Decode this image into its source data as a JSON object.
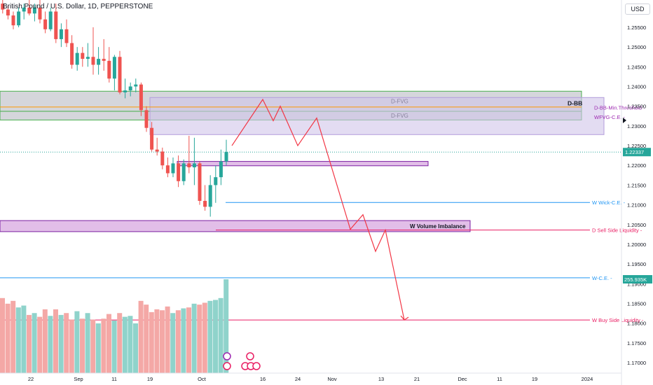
{
  "header": {
    "symbol_line": "British Pound / U.S. Dollar, 1D, PEPPERSTONE",
    "currency_button": "USD"
  },
  "chart_data": {
    "type": "candlestick",
    "title": "British Pound / U.S. Dollar, 1D, PEPPERSTONE",
    "x_axis_ticks": [
      "22",
      "Sep",
      "11",
      "19",
      "Oct",
      "16",
      "24",
      "Nov",
      "13",
      "21",
      "Dec",
      "11",
      "19",
      "2024"
    ],
    "y_axis_ticks": [
      "1.25500",
      "1.25000",
      "1.24500",
      "1.24000",
      "1.23500",
      "1.23000",
      "1.22500",
      "1.22000",
      "1.21500",
      "1.21000",
      "1.20500",
      "1.20000",
      "1.19500",
      "1.19000",
      "1.18500",
      "1.18000",
      "1.17500",
      "1.17000"
    ],
    "ylim": [
      1.1675,
      1.2605
    ],
    "last_price": "1.22337",
    "last_volume": "255.935K",
    "candles": [
      {
        "o": 1.261,
        "h": 1.262,
        "l": 1.2585,
        "c": 1.2595
      },
      {
        "o": 1.2595,
        "h": 1.2605,
        "l": 1.257,
        "c": 1.258
      },
      {
        "o": 1.258,
        "h": 1.259,
        "l": 1.2545,
        "c": 1.2555
      },
      {
        "o": 1.2555,
        "h": 1.26,
        "l": 1.255,
        "c": 1.259
      },
      {
        "o": 1.259,
        "h": 1.261,
        "l": 1.257,
        "c": 1.26
      },
      {
        "o": 1.26,
        "h": 1.262,
        "l": 1.258,
        "c": 1.2585
      },
      {
        "o": 1.2585,
        "h": 1.261,
        "l": 1.2565,
        "c": 1.26
      },
      {
        "o": 1.26,
        "h": 1.262,
        "l": 1.256,
        "c": 1.257
      },
      {
        "o": 1.257,
        "h": 1.259,
        "l": 1.2535,
        "c": 1.2545
      },
      {
        "o": 1.2545,
        "h": 1.26,
        "l": 1.254,
        "c": 1.259
      },
      {
        "o": 1.259,
        "h": 1.261,
        "l": 1.251,
        "c": 1.252
      },
      {
        "o": 1.252,
        "h": 1.256,
        "l": 1.25,
        "c": 1.2545
      },
      {
        "o": 1.2545,
        "h": 1.257,
        "l": 1.25,
        "c": 1.251
      },
      {
        "o": 1.251,
        "h": 1.253,
        "l": 1.2445,
        "c": 1.2455
      },
      {
        "o": 1.2455,
        "h": 1.25,
        "l": 1.244,
        "c": 1.2485
      },
      {
        "o": 1.2485,
        "h": 1.25,
        "l": 1.245,
        "c": 1.247
      },
      {
        "o": 1.247,
        "h": 1.251,
        "l": 1.245,
        "c": 1.2475
      },
      {
        "o": 1.2475,
        "h": 1.255,
        "l": 1.243,
        "c": 1.2455
      },
      {
        "o": 1.2455,
        "h": 1.25,
        "l": 1.243,
        "c": 1.247
      },
      {
        "o": 1.247,
        "h": 1.252,
        "l": 1.244,
        "c": 1.2465
      },
      {
        "o": 1.2465,
        "h": 1.25,
        "l": 1.241,
        "c": 1.242
      },
      {
        "o": 1.242,
        "h": 1.248,
        "l": 1.239,
        "c": 1.2475
      },
      {
        "o": 1.2475,
        "h": 1.249,
        "l": 1.238,
        "c": 1.2385
      },
      {
        "o": 1.2385,
        "h": 1.242,
        "l": 1.237,
        "c": 1.239
      },
      {
        "o": 1.239,
        "h": 1.241,
        "l": 1.2375,
        "c": 1.24
      },
      {
        "o": 1.24,
        "h": 1.242,
        "l": 1.2385,
        "c": 1.2405
      },
      {
        "o": 1.2405,
        "h": 1.241,
        "l": 1.2325,
        "c": 1.234
      },
      {
        "o": 1.234,
        "h": 1.235,
        "l": 1.2285,
        "c": 1.2295
      },
      {
        "o": 1.2295,
        "h": 1.231,
        "l": 1.2235,
        "c": 1.224
      },
      {
        "o": 1.224,
        "h": 1.227,
        "l": 1.2225,
        "c": 1.2235
      },
      {
        "o": 1.2235,
        "h": 1.2245,
        "l": 1.219,
        "c": 1.22
      },
      {
        "o": 1.22,
        "h": 1.222,
        "l": 1.217,
        "c": 1.218
      },
      {
        "o": 1.218,
        "h": 1.222,
        "l": 1.217,
        "c": 1.2205
      },
      {
        "o": 1.2205,
        "h": 1.2225,
        "l": 1.2145,
        "c": 1.216
      },
      {
        "o": 1.216,
        "h": 1.2215,
        "l": 1.215,
        "c": 1.2205
      },
      {
        "o": 1.2205,
        "h": 1.2275,
        "l": 1.218,
        "c": 1.2195
      },
      {
        "o": 1.2195,
        "h": 1.227,
        "l": 1.215,
        "c": 1.2205
      },
      {
        "o": 1.2205,
        "h": 1.221,
        "l": 1.21,
        "c": 1.211
      },
      {
        "o": 1.211,
        "h": 1.215,
        "l": 1.2085,
        "c": 1.2095
      },
      {
        "o": 1.2095,
        "h": 1.2175,
        "l": 1.207,
        "c": 1.215
      },
      {
        "o": 1.215,
        "h": 1.22,
        "l": 1.2105,
        "c": 1.217
      },
      {
        "o": 1.217,
        "h": 1.224,
        "l": 1.215,
        "c": 1.221
      },
      {
        "o": 1.221,
        "h": 1.2265,
        "l": 1.22,
        "c": 1.2234
      }
    ],
    "volume": [
      0.8,
      0.74,
      0.77,
      0.7,
      0.72,
      0.62,
      0.64,
      0.6,
      0.68,
      0.61,
      0.68,
      0.62,
      0.64,
      0.57,
      0.66,
      0.58,
      0.64,
      0.57,
      0.53,
      0.58,
      0.63,
      0.56,
      0.64,
      0.6,
      0.61,
      0.53,
      0.77,
      0.73,
      0.65,
      0.68,
      0.67,
      0.71,
      0.64,
      0.67,
      0.69,
      0.7,
      0.74,
      0.73,
      0.75,
      0.77,
      0.78,
      0.8,
      1.0
    ],
    "colors": {
      "up": "#26a69a",
      "down": "#ef5350",
      "vol_up": "#8fd3cb",
      "vol_down": "#f4a8a6",
      "projection": "#f23645"
    },
    "zones": [
      {
        "label": "D-FVG",
        "y1": 1.2388,
        "y2": 1.2337,
        "color": "#b2b5be",
        "edge": "#4caf50"
      },
      {
        "label": "D-FVG",
        "y1": 1.2337,
        "y2": 1.2315,
        "color": "#b2b5be",
        "edge": "#4caf50"
      },
      {
        "label": "",
        "y1": 1.2372,
        "y2": 1.2278,
        "color": "#d1c4e9",
        "edge": "#b39ddb"
      },
      {
        "label": "",
        "y1": 1.221,
        "y2": 1.2199,
        "color": "#ce93d8",
        "edge": "#7b1fa2"
      },
      {
        "label": "W Volume Imbalance",
        "y1": 1.206,
        "y2": 1.2032,
        "color": "#ce93d8",
        "edge": "#7b1fa2"
      }
    ],
    "levels": [
      {
        "label": "D-BB",
        "price": 1.235,
        "color": "#131722"
      },
      {
        "label": "D-BB-Min.Threshold",
        "price": 1.2347,
        "color": "#9c27b0"
      },
      {
        "label": "WFVG-C.E.",
        "price": 1.2323,
        "color": "#9c27b0"
      },
      {
        "label": "W Wick-C.E.",
        "price": 1.2106,
        "color": "#2196f3"
      },
      {
        "label": "D Sell Side Liquidity",
        "price": 1.2036,
        "color": "#e91e63"
      },
      {
        "label": "W-C.E.",
        "price": 1.1915,
        "color": "#2196f3"
      },
      {
        "label": "W Buy Side Liquidity",
        "price": 1.1808,
        "color": "#e91e63"
      }
    ],
    "projection_path": [
      [
        1.225
      ],
      [
        1.2367
      ],
      [
        1.2313
      ],
      [
        1.235
      ],
      [
        1.225
      ],
      [
        1.232
      ],
      [
        1.2038
      ],
      [
        1.2075
      ],
      [
        1.1982
      ],
      [
        1.2036
      ],
      [
        1.1808
      ]
    ],
    "grid": false,
    "legend": "none"
  }
}
